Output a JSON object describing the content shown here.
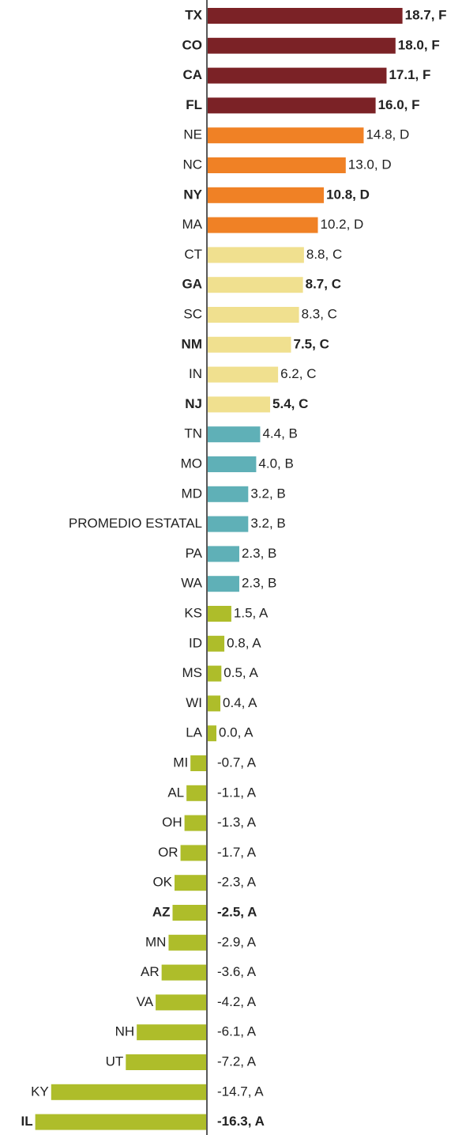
{
  "chart_data": {
    "type": "barh",
    "categories": [
      "TX",
      "CO",
      "CA",
      "FL",
      "NE",
      "NC",
      "NY",
      "MA",
      "CT",
      "GA",
      "SC",
      "NM",
      "IN",
      "NJ",
      "TN",
      "MO",
      "MD",
      "PROMEDIO ESTATAL",
      "PA",
      "WA",
      "KS",
      "ID",
      "MS",
      "WI",
      "LA",
      "MI",
      "AL",
      "OH",
      "OR",
      "OK",
      "AZ",
      "MN",
      "AR",
      "VA",
      "NH",
      "UT",
      "KY",
      "IL"
    ],
    "values": [
      18.7,
      18.0,
      17.1,
      16.0,
      14.8,
      13.0,
      10.8,
      10.2,
      8.8,
      8.7,
      8.3,
      7.5,
      6.2,
      5.4,
      4.4,
      4.0,
      3.2,
      3.2,
      2.3,
      2.3,
      1.5,
      0.8,
      0.5,
      0.4,
      0.0,
      -0.7,
      -1.1,
      -1.3,
      -1.7,
      -2.3,
      -2.5,
      -2.9,
      -3.6,
      -4.2,
      -6.1,
      -7.2,
      -14.7,
      -16.3
    ],
    "value_labels": [
      "18.7, F",
      "18.0, F",
      "17.1, F",
      "16.0, F",
      "14.8, D",
      "13.0, D",
      "10.8, D",
      "10.2, D",
      "8.8, C",
      "8.7, C",
      "8.3, C",
      "7.5, C",
      "6.2, C",
      "5.4, C",
      "4.4, B",
      "4.0, B",
      "3.2, B",
      "3.2, B",
      "2.3, B",
      "2.3, B",
      "1.5, A",
      "0.8, A",
      "0.5, A",
      "0.4, A",
      "0.0, A",
      "-0.7, A",
      "-1.1, A",
      "-1.3, A",
      "-1.7, A",
      "-2.3, A",
      "-2.5, A",
      "-2.9, A",
      "-3.6, A",
      "-4.2, A",
      "-6.1, A",
      "-7.2, A",
      "-14.7, A",
      "-16.3, A"
    ],
    "colors": [
      "#7b2226",
      "#7b2226",
      "#7b2226",
      "#7b2226",
      "#f08125",
      "#f08125",
      "#f08125",
      "#f08125",
      "#f0e08f",
      "#f0e08f",
      "#f0e08f",
      "#f0e08f",
      "#f0e08f",
      "#f0e08f",
      "#5fb0b7",
      "#5fb0b7",
      "#5fb0b7",
      "#5fb0b7",
      "#5fb0b7",
      "#5fb0b7",
      "#aebd2a",
      "#aebd2a",
      "#aebd2a",
      "#aebd2a",
      "#aebd2a",
      "#aebd2a",
      "#aebd2a",
      "#aebd2a",
      "#aebd2a",
      "#aebd2a",
      "#aebd2a",
      "#aebd2a",
      "#aebd2a",
      "#aebd2a",
      "#aebd2a",
      "#aebd2a",
      "#aebd2a",
      "#aebd2a"
    ],
    "bold": [
      true,
      true,
      true,
      true,
      false,
      false,
      true,
      false,
      false,
      true,
      false,
      true,
      false,
      true,
      false,
      false,
      false,
      false,
      false,
      false,
      false,
      false,
      false,
      false,
      false,
      false,
      false,
      false,
      false,
      false,
      true,
      false,
      false,
      false,
      false,
      false,
      false,
      true
    ]
  }
}
